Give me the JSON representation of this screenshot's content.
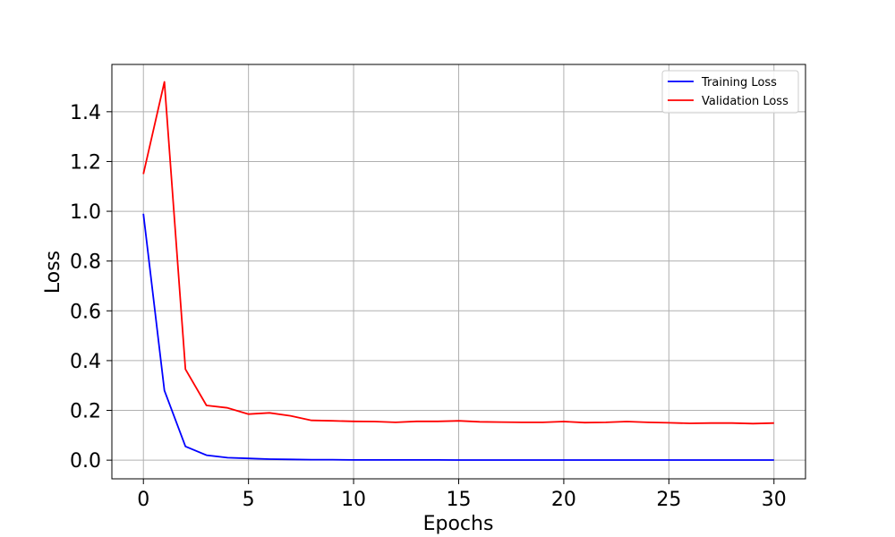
{
  "chart_data": {
    "type": "line",
    "xlabel": "Epochs",
    "ylabel": "Loss",
    "xlim": [
      -1.5,
      31.5
    ],
    "ylim": [
      -0.075,
      1.59
    ],
    "xticks": [
      0,
      5,
      10,
      15,
      20,
      25,
      30
    ],
    "yticks": [
      0.0,
      0.2,
      0.4,
      0.6,
      0.8,
      1.0,
      1.2,
      1.4
    ],
    "ytick_labels": [
      "0.0",
      "0.2",
      "0.4",
      "0.6",
      "0.8",
      "1.0",
      "1.2",
      "1.4"
    ],
    "grid": true,
    "legend_position": "top-right",
    "x": [
      0,
      1,
      2,
      3,
      4,
      5,
      6,
      7,
      8,
      9,
      10,
      11,
      12,
      13,
      14,
      15,
      16,
      17,
      18,
      19,
      20,
      21,
      22,
      23,
      24,
      25,
      26,
      27,
      28,
      29,
      30
    ],
    "series": [
      {
        "name": "Training Loss",
        "color": "#0000ff",
        "values": [
          0.99,
          0.28,
          0.055,
          0.02,
          0.01,
          0.007,
          0.004,
          0.003,
          0.002,
          0.002,
          0.001,
          0.001,
          0.001,
          0.001,
          0.001,
          0.0005,
          0.0005,
          0.0005,
          0.0005,
          0.0005,
          0.0005,
          0.0005,
          0.0005,
          0.0005,
          0.0005,
          0.0005,
          0.0005,
          0.0005,
          0.0005,
          0.0005,
          0.0005
        ]
      },
      {
        "name": "Validation Loss",
        "color": "#ff0000",
        "values": [
          1.15,
          1.52,
          0.365,
          0.22,
          0.21,
          0.185,
          0.19,
          0.178,
          0.16,
          0.158,
          0.156,
          0.155,
          0.152,
          0.156,
          0.156,
          0.158,
          0.154,
          0.153,
          0.152,
          0.152,
          0.155,
          0.151,
          0.152,
          0.155,
          0.152,
          0.15,
          0.148,
          0.149,
          0.149,
          0.147,
          0.149
        ]
      }
    ]
  }
}
